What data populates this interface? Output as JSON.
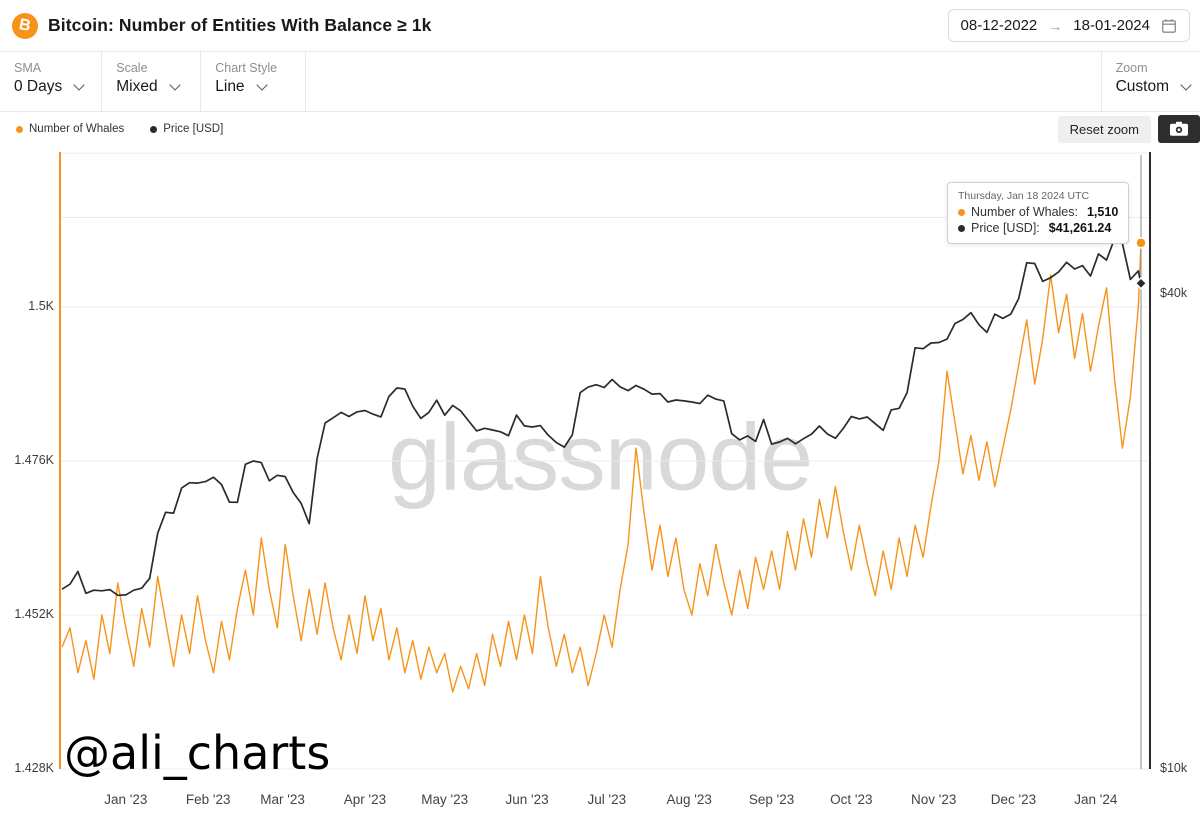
{
  "header": {
    "icon_glyph": "B",
    "title": "Bitcoin: Number of Entities With Balance ≥ 1k",
    "date_from": "08-12-2022",
    "date_arrow": "→",
    "date_to": "18-01-2024"
  },
  "toolbar": {
    "sma": {
      "label": "SMA",
      "value": "0 Days"
    },
    "scale": {
      "label": "Scale",
      "value": "Mixed"
    },
    "chart_style": {
      "label": "Chart Style",
      "value": "Line"
    },
    "zoom": {
      "label": "Zoom",
      "value": "Custom"
    }
  },
  "legend": {
    "series1_label": "Number of Whales",
    "series2_label": "Price [USD]",
    "reset_zoom_label": "Reset zoom"
  },
  "tooltip": {
    "date": "Thursday, Jan 18 2024 UTC",
    "whales_label": "Number of Whales:",
    "whales_value": "1,510",
    "price_label": "Price [USD]:",
    "price_value": "$41,261.24"
  },
  "watermark": "glassnode",
  "annotation": "@ali_charts",
  "colors": {
    "orange": "#f7931a",
    "black": "#2b2b2b",
    "grid": "#ececec",
    "crosshair": "#8a8a8a"
  },
  "chart_data": {
    "type": "line",
    "title": "Bitcoin: Number of Entities With Balance ≥ 1k",
    "x_start_date": "2022-12-08",
    "x_end_date": "2024-01-18",
    "x_total_days": 406,
    "x_step_days": 3,
    "grid": true,
    "x_ticks": [
      {
        "label": "Jan '23",
        "day": 24
      },
      {
        "label": "Feb '23",
        "day": 55
      },
      {
        "label": "Mar '23",
        "day": 83
      },
      {
        "label": "Apr '23",
        "day": 114
      },
      {
        "label": "May '23",
        "day": 144
      },
      {
        "label": "Jun '23",
        "day": 175
      },
      {
        "label": "Jul '23",
        "day": 205
      },
      {
        "label": "Aug '23",
        "day": 236
      },
      {
        "label": "Sep '23",
        "day": 267
      },
      {
        "label": "Oct '23",
        "day": 297
      },
      {
        "label": "Nov '23",
        "day": 328
      },
      {
        "label": "Dec '23",
        "day": 358
      },
      {
        "label": "Jan '24",
        "day": 389
      }
    ],
    "left_axis": {
      "title": "Number of Whales",
      "scale": "linear",
      "unit": "K entities",
      "min": 1.428,
      "max": 1.5237,
      "ticks": [
        {
          "label": "1.5K",
          "value": 1.5
        },
        {
          "label": "1.476K",
          "value": 1.476
        },
        {
          "label": "1.452K",
          "value": 1.452
        },
        {
          "label": "1.428K",
          "value": 1.428
        }
      ],
      "extra_gridline_value": 1.524
    },
    "right_axis": {
      "title": "Price [USD]",
      "scale": "log",
      "min": 10000,
      "max": 60000,
      "ticks": [
        {
          "label": "$40k",
          "value": 40000
        },
        {
          "label": "$10k",
          "value": 10000
        }
      ],
      "extra_gridline_value": 50000
    },
    "series": [
      {
        "name": "Number of Whales",
        "axis": "left",
        "color": "#f7931a",
        "values": [
          1.447,
          1.45,
          1.443,
          1.448,
          1.442,
          1.452,
          1.446,
          1.457,
          1.45,
          1.444,
          1.453,
          1.447,
          1.458,
          1.451,
          1.444,
          1.452,
          1.446,
          1.455,
          1.448,
          1.443,
          1.451,
          1.445,
          1.453,
          1.459,
          1.452,
          1.464,
          1.456,
          1.45,
          1.463,
          1.455,
          1.448,
          1.456,
          1.449,
          1.457,
          1.45,
          1.445,
          1.452,
          1.446,
          1.455,
          1.448,
          1.453,
          1.445,
          1.45,
          1.443,
          1.448,
          1.442,
          1.447,
          1.443,
          1.446,
          1.44,
          1.444,
          1.4405,
          1.446,
          1.441,
          1.449,
          1.444,
          1.451,
          1.445,
          1.452,
          1.446,
          1.458,
          1.45,
          1.444,
          1.449,
          1.443,
          1.447,
          1.441,
          1.446,
          1.452,
          1.447,
          1.456,
          1.463,
          1.478,
          1.468,
          1.459,
          1.466,
          1.458,
          1.464,
          1.456,
          1.452,
          1.46,
          1.455,
          1.463,
          1.457,
          1.452,
          1.459,
          1.453,
          1.461,
          1.456,
          1.462,
          1.456,
          1.465,
          1.459,
          1.467,
          1.461,
          1.47,
          1.464,
          1.472,
          1.465,
          1.459,
          1.466,
          1.46,
          1.455,
          1.462,
          1.456,
          1.464,
          1.458,
          1.466,
          1.461,
          1.469,
          1.476,
          1.49,
          1.482,
          1.474,
          1.48,
          1.473,
          1.479,
          1.472,
          1.478,
          1.484,
          1.491,
          1.498,
          1.488,
          1.495,
          1.505,
          1.496,
          1.502,
          1.492,
          1.499,
          1.49,
          1.497,
          1.503,
          1.489,
          1.478,
          1.486,
          1.5,
          1.51
        ]
      },
      {
        "name": "Price [USD]",
        "axis": "right",
        "color": "#2b2b2b",
        "values": [
          16900,
          17150,
          17800,
          16700,
          16850,
          16820,
          16880,
          16600,
          16620,
          16850,
          16950,
          17450,
          19900,
          21150,
          21100,
          22700,
          23060,
          23030,
          23130,
          23430,
          22940,
          21790,
          21780,
          24330,
          24570,
          24450,
          23190,
          23560,
          23470,
          22410,
          21710,
          20460,
          24750,
          27450,
          27870,
          28310,
          27970,
          28350,
          28470,
          28170,
          27940,
          29650,
          30400,
          30310,
          28820,
          27820,
          28310,
          29340,
          28080,
          28890,
          28440,
          27620,
          26820,
          27030,
          26890,
          26750,
          26450,
          28090,
          27220,
          27130,
          27240,
          26480,
          25930,
          25580,
          26510,
          29990,
          30480,
          30690,
          30440,
          31160,
          30500,
          30170,
          30620,
          30290,
          29860,
          29910,
          29180,
          29350,
          29280,
          29180,
          29050,
          29770,
          29430,
          29280,
          26600,
          26130,
          26430,
          26010,
          27730,
          25810,
          25970,
          26250,
          25830,
          26220,
          26570,
          27210,
          26580,
          26250,
          27020,
          27970,
          27780,
          27930,
          27390,
          26870,
          28520,
          28650,
          29990,
          34180,
          34090,
          34660,
          34720,
          35060,
          36700,
          37130,
          37880,
          36570,
          35750,
          37720,
          37250,
          37720,
          39470,
          43810,
          43720,
          41490,
          41940,
          42660,
          43870,
          43020,
          43450,
          42150,
          44960,
          44150,
          46950,
          46340,
          41730,
          42780,
          41261.24
        ]
      }
    ],
    "last_point": {
      "date": "2024-01-18",
      "whales": 1510,
      "price": 41261.24
    }
  }
}
